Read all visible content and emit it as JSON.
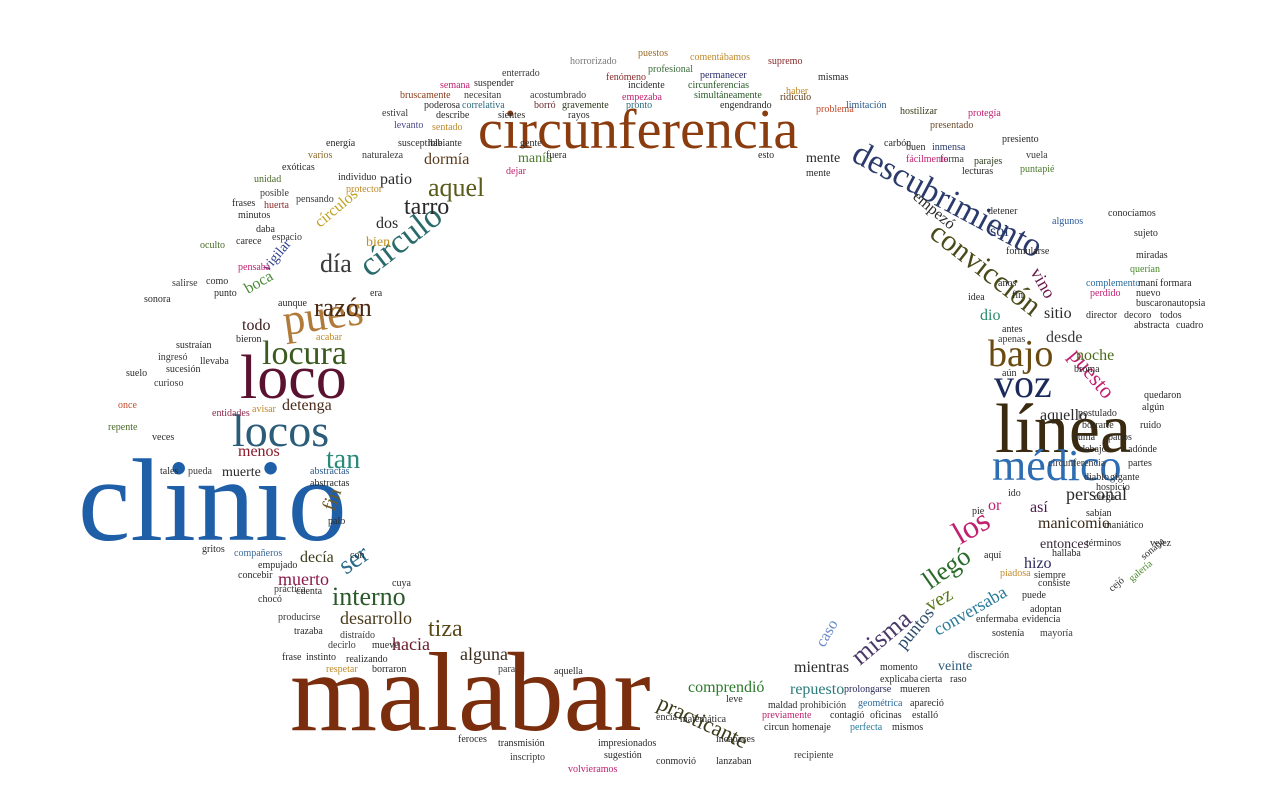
{
  "title": "",
  "words": [
    {
      "text": "clinio",
      "color": "#1f5fa8"
    },
    {
      "text": "malabar",
      "color": "#7a2e0e"
    },
    {
      "text": "circunferencia",
      "color": "#8a3c0e"
    },
    {
      "text": "línea",
      "color": "#3a2a10"
    },
    {
      "text": "loco",
      "color": "#5a1230"
    },
    {
      "text": "locos",
      "color": "#2b5c7a"
    },
    {
      "text": "médico",
      "color": "#2f6db3"
    },
    {
      "text": "pues",
      "color": "#b07a3a"
    },
    {
      "text": "voz",
      "color": "#1b2a5a"
    },
    {
      "text": "locura",
      "color": "#3a5a20"
    },
    {
      "text": "bajo",
      "color": "#6a4a10"
    },
    {
      "text": "descubrimiento",
      "color": "#2a3a6a"
    },
    {
      "text": "convicción",
      "color": "#4a4a1a"
    },
    {
      "text": "círculo",
      "color": "#2a6a6a"
    },
    {
      "text": "razón",
      "color": "#4a2a10"
    },
    {
      "text": "día",
      "color": "#3a3a3a"
    },
    {
      "text": "aquel",
      "color": "#5a5a1a"
    },
    {
      "text": "tarro",
      "color": "#2a2a2a"
    },
    {
      "text": "los",
      "color": "#c02070"
    },
    {
      "text": "llegó",
      "color": "#2a6a2a"
    },
    {
      "text": "misma",
      "color": "#4a3a6a"
    },
    {
      "text": "interno",
      "color": "#2a5a2a"
    },
    {
      "text": "ser",
      "color": "#2a6a8a"
    },
    {
      "text": "tiza",
      "color": "#5a4a1a"
    },
    {
      "text": "tan",
      "color": "#2a8a7a"
    },
    {
      "text": "fin",
      "color": "#6a5a2a"
    },
    {
      "text": "muerto",
      "color": "#8a1a4a"
    },
    {
      "text": "practicante",
      "color": "#3a3a1a"
    },
    {
      "text": "alguna",
      "color": "#3a2a1a"
    },
    {
      "text": "hacia",
      "color": "#6a1a2a"
    },
    {
      "text": "desarrollo",
      "color": "#4a3a1a"
    },
    {
      "text": "vez",
      "color": "#5a7a1a"
    },
    {
      "text": "puntos",
      "color": "#2a4a6a"
    },
    {
      "text": "conversaba",
      "color": "#2a7a9a"
    },
    {
      "text": "manicomio",
      "color": "#3a2a1a"
    },
    {
      "text": "personal",
      "color": "#2a2a2a"
    },
    {
      "text": "entonces",
      "color": "#3a2a3a"
    },
    {
      "text": "así",
      "color": "#4a1a4a"
    },
    {
      "text": "puesto",
      "color": "#c02070"
    },
    {
      "text": "noche",
      "color": "#4a6a1a"
    },
    {
      "text": "desde",
      "color": "#3a3a3a"
    },
    {
      "text": "aquello",
      "color": "#2a2a2a"
    },
    {
      "text": "sitio",
      "color": "#2a2a2a"
    },
    {
      "text": "vino",
      "color": "#6a1a4a"
    },
    {
      "text": "dio",
      "color": "#2a8a6a"
    },
    {
      "text": "sol",
      "color": "#2a3a6a"
    },
    {
      "text": "empezó",
      "color": "#2a2a2a"
    },
    {
      "text": "mente",
      "color": "#2a2a2a"
    },
    {
      "text": "manía",
      "color": "#4a7a2a"
    },
    {
      "text": "dormía",
      "color": "#5a3a1a"
    },
    {
      "text": "patio",
      "color": "#2a2a2a"
    },
    {
      "text": "dos",
      "color": "#2a2a2a"
    },
    {
      "text": "bien",
      "color": "#c09020"
    },
    {
      "text": "círculos",
      "color": "#c0a020"
    },
    {
      "text": "vigilar",
      "color": "#2a3a8a"
    },
    {
      "text": "boca",
      "color": "#4a8a3a"
    },
    {
      "text": "todo",
      "color": "#3a1a1a"
    },
    {
      "text": "detenga",
      "color": "#4a2a1a"
    },
    {
      "text": "menos",
      "color": "#8a1a2a"
    },
    {
      "text": "muerte",
      "color": "#2a2a2a"
    },
    {
      "text": "decía",
      "color": "#3a3a1a"
    },
    {
      "text": "mientras",
      "color": "#2a2a2a"
    },
    {
      "text": "repuesto",
      "color": "#2a7a7a"
    },
    {
      "text": "comprendió",
      "color": "#2a7a2a"
    },
    {
      "text": "caso",
      "color": "#6a8aca"
    },
    {
      "text": "veinte",
      "color": "#2a5a7a"
    },
    {
      "text": "hizo",
      "color": "#2a2a5a"
    },
    {
      "text": "or",
      "color": "#c02070"
    },
    {
      "text": "horrorizado",
      "color": "#7a7a7a"
    },
    {
      "text": "puestos",
      "color": "#9a6a2a"
    },
    {
      "text": "supremo",
      "color": "#8a2a2a"
    },
    {
      "text": "profesional",
      "color": "#3a6a3a"
    },
    {
      "text": "permanecer",
      "color": "#2a2a6a"
    },
    {
      "text": "simultáneamente",
      "color": "#2a5a2a"
    },
    {
      "text": "ridículo",
      "color": "#5a3a1a"
    },
    {
      "text": "problema",
      "color": "#c04a2a"
    },
    {
      "text": "limitación",
      "color": "#2a5a8a"
    },
    {
      "text": "presentado",
      "color": "#6a4a2a"
    },
    {
      "text": "protegía",
      "color": "#c02070"
    },
    {
      "text": "hostilizar",
      "color": "#3a3a1a"
    },
    {
      "text": "inmensa",
      "color": "#2a3a6a"
    },
    {
      "text": "forma",
      "color": "#3a3a3a"
    },
    {
      "text": "parajes",
      "color": "#2a3a1a"
    },
    {
      "text": "vuela",
      "color": "#3a3a3a"
    },
    {
      "text": "puntapié",
      "color": "#4a7a2a"
    },
    {
      "text": "suspender",
      "color": "#2a2a2a"
    },
    {
      "text": "enterrado",
      "color": "#3a3a3a"
    },
    {
      "text": "acostumbrado",
      "color": "#3a3a3a"
    },
    {
      "text": "incidente",
      "color": "#2a2a2a"
    },
    {
      "text": "pronto",
      "color": "#2a6a7a"
    },
    {
      "text": "circunferencias",
      "color": "#2a5a2a"
    },
    {
      "text": "semana",
      "color": "#c02070"
    },
    {
      "text": "bruscamente",
      "color": "#8a3a1a"
    },
    {
      "text": "necesitan",
      "color": "#3a3a3a"
    },
    {
      "text": "correlativa",
      "color": "#2a6a7a"
    },
    {
      "text": "poderosa",
      "color": "#2a2a2a"
    },
    {
      "text": "borró",
      "color": "#6a2a2a"
    },
    {
      "text": "gravemente",
      "color": "#2a3a1a"
    },
    {
      "text": "fenómeno",
      "color": "#8a2a2a"
    },
    {
      "text": "engendrando",
      "color": "#2a2a2a"
    },
    {
      "text": "estival",
      "color": "#3a3a3a"
    },
    {
      "text": "describe",
      "color": "#2a2a2a"
    },
    {
      "text": "levanto",
      "color": "#4a4a8a"
    },
    {
      "text": "sentado",
      "color": "#c08a2a"
    },
    {
      "text": "habiante",
      "color": "#2a2a2a"
    },
    {
      "text": "susceptible",
      "color": "#2a2a2a"
    },
    {
      "text": "naturaleza",
      "color": "#3a3a3a"
    },
    {
      "text": "energía",
      "color": "#2a2a2a"
    },
    {
      "text": "varios",
      "color": "#8a6a2a"
    },
    {
      "text": "exóticas",
      "color": "#2a2a2a"
    },
    {
      "text": "unidad",
      "color": "#4a6a2a"
    },
    {
      "text": "frases",
      "color": "#2a2a2a"
    },
    {
      "text": "posible",
      "color": "#3a3a3a"
    },
    {
      "text": "minutos",
      "color": "#2a2a2a"
    },
    {
      "text": "pensando",
      "color": "#3a3a3a"
    },
    {
      "text": "huerta",
      "color": "#8a2a2a"
    },
    {
      "text": "daba",
      "color": "#2a2a2a"
    },
    {
      "text": "espacio",
      "color": "#3a3a3a"
    },
    {
      "text": "carece",
      "color": "#2a2a2a"
    },
    {
      "text": "oculto",
      "color": "#4a6a2a"
    },
    {
      "text": "pensaba",
      "color": "#c02070"
    },
    {
      "text": "sonora",
      "color": "#2a2a2a"
    },
    {
      "text": "punto",
      "color": "#2a2a2a"
    },
    {
      "text": "salirse",
      "color": "#3a3a3a"
    },
    {
      "text": "como",
      "color": "#2a2a2a"
    },
    {
      "text": "ingresó",
      "color": "#3a3a3a"
    },
    {
      "text": "sucesión",
      "color": "#2a2a2a"
    },
    {
      "text": "curioso",
      "color": "#3a3a3a"
    },
    {
      "text": "suelo",
      "color": "#2a2a2a"
    },
    {
      "text": "once",
      "color": "#c04a2a"
    },
    {
      "text": "repente",
      "color": "#4a6a2a"
    },
    {
      "text": "entidades",
      "color": "#8a2a4a"
    },
    {
      "text": "tales",
      "color": "#2a2a2a"
    },
    {
      "text": "pueda",
      "color": "#3a3a3a"
    },
    {
      "text": "abstractas",
      "color": "#2a5a8a"
    },
    {
      "text": "gritos",
      "color": "#2a2a2a"
    },
    {
      "text": "compañeros",
      "color": "#3a6a9a"
    },
    {
      "text": "empujado",
      "color": "#2a2a2a"
    },
    {
      "text": "concebir",
      "color": "#2a2a2a"
    },
    {
      "text": "práctica",
      "color": "#3a3a3a"
    },
    {
      "text": "cuenta",
      "color": "#2a2a2a"
    },
    {
      "text": "chocó",
      "color": "#2a2a2a"
    },
    {
      "text": "producirse",
      "color": "#3a3a3a"
    },
    {
      "text": "trazaba",
      "color": "#2a2a2a"
    },
    {
      "text": "distraído",
      "color": "#3a3a3a"
    },
    {
      "text": "frase",
      "color": "#2a2a2a"
    },
    {
      "text": "instinto",
      "color": "#2a2a2a"
    },
    {
      "text": "realizando",
      "color": "#2a2a2a"
    },
    {
      "text": "decirlo",
      "color": "#3a3a3a"
    },
    {
      "text": "mueve",
      "color": "#2a2a2a"
    },
    {
      "text": "respetar",
      "color": "#c08a2a"
    },
    {
      "text": "borraron",
      "color": "#2a2a2a"
    },
    {
      "text": "aquella",
      "color": "#2a2a2a"
    },
    {
      "text": "para",
      "color": "#3a3a3a"
    },
    {
      "text": "transmisión",
      "color": "#2a2a2a"
    },
    {
      "text": "impresionados",
      "color": "#2a2a2a"
    },
    {
      "text": "feroces",
      "color": "#2a2a2a"
    },
    {
      "text": "inscripto",
      "color": "#3a3a3a"
    },
    {
      "text": "sugestión",
      "color": "#2a2a2a"
    },
    {
      "text": "volvieramos",
      "color": "#c02070"
    },
    {
      "text": "conmovió",
      "color": "#2a2a2a"
    },
    {
      "text": "lanzaban",
      "color": "#2a2a2a"
    },
    {
      "text": "recipiente",
      "color": "#3a3a3a"
    },
    {
      "text": "matemática",
      "color": "#2a2a2a"
    },
    {
      "text": "incapaces",
      "color": "#2a2a2a"
    },
    {
      "text": "circun",
      "color": "#2a2a2a"
    },
    {
      "text": "homenaje",
      "color": "#2a2a2a"
    },
    {
      "text": "perfecta",
      "color": "#2a7a9a"
    },
    {
      "text": "mismos",
      "color": "#2a2a2a"
    },
    {
      "text": "maldad",
      "color": "#2a2a2a"
    },
    {
      "text": "prohibición",
      "color": "#3a3a3a"
    },
    {
      "text": "contagió",
      "color": "#2a2a2a"
    },
    {
      "text": "oficinas",
      "color": "#2a2a2a"
    },
    {
      "text": "estalló",
      "color": "#2a2a2a"
    },
    {
      "text": "previamente",
      "color": "#c02070"
    },
    {
      "text": "geométrica",
      "color": "#2a6a9a"
    },
    {
      "text": "apareció",
      "color": "#2a2a2a"
    },
    {
      "text": "prolongarse",
      "color": "#2a2a5a"
    },
    {
      "text": "mueren",
      "color": "#2a2a2a"
    },
    {
      "text": "explicaba",
      "color": "#2a2a2a"
    },
    {
      "text": "cierta",
      "color": "#2a2a2a"
    },
    {
      "text": "raso",
      "color": "#2a2a2a"
    },
    {
      "text": "momento",
      "color": "#2a2a2a"
    },
    {
      "text": "discreción",
      "color": "#3a3a3a"
    },
    {
      "text": "enfermaba",
      "color": "#2a2a2a"
    },
    {
      "text": "evidencia",
      "color": "#2a2a2a"
    },
    {
      "text": "sostenía",
      "color": "#2a2a2a"
    },
    {
      "text": "mayoría",
      "color": "#3a3a3a"
    },
    {
      "text": "adoptan",
      "color": "#2a2a2a"
    },
    {
      "text": "puede",
      "color": "#2a2a2a"
    },
    {
      "text": "siempre",
      "color": "#2a2a2a"
    },
    {
      "text": "hallaba",
      "color": "#2a2a2a"
    },
    {
      "text": "términos",
      "color": "#2a2a2a"
    },
    {
      "text": "maniático",
      "color": "#2a2a2a"
    },
    {
      "text": "sabían",
      "color": "#2a2a2a"
    },
    {
      "text": "hospicio",
      "color": "#2a2a2a"
    },
    {
      "text": "partes",
      "color": "#2a2a2a"
    },
    {
      "text": "circunferencia",
      "color": "#3a3a3a"
    },
    {
      "text": "debajo",
      "color": "#2a2a2a"
    },
    {
      "text": "adónde",
      "color": "#2a2a2a"
    },
    {
      "text": "suma",
      "color": "#2a2a2a"
    },
    {
      "text": "patios",
      "color": "#2a2a2a"
    },
    {
      "text": "borrarle",
      "color": "#2a2a2a"
    },
    {
      "text": "ruido",
      "color": "#2a2a2a"
    },
    {
      "text": "postulado",
      "color": "#2a2a2a"
    },
    {
      "text": "quedaron",
      "color": "#2a2a2a"
    },
    {
      "text": "broma",
      "color": "#2a2a2a"
    },
    {
      "text": "abstracta",
      "color": "#2a2a2a"
    },
    {
      "text": "cuadro",
      "color": "#2a2a2a"
    },
    {
      "text": "director",
      "color": "#2a2a2a"
    },
    {
      "text": "decoro",
      "color": "#2a2a2a"
    },
    {
      "text": "todos",
      "color": "#2a2a2a"
    },
    {
      "text": "perdido",
      "color": "#c02070"
    },
    {
      "text": "nuevo",
      "color": "#2a2a2a"
    },
    {
      "text": "complemento",
      "color": "#2a6a9a"
    },
    {
      "text": "maní",
      "color": "#2a2a2a"
    },
    {
      "text": "formara",
      "color": "#2a2a2a"
    },
    {
      "text": "querían",
      "color": "#4a8a2a"
    },
    {
      "text": "miradas",
      "color": "#2a2a2a"
    },
    {
      "text": "sujeto",
      "color": "#2a2a2a"
    },
    {
      "text": "conocíamos",
      "color": "#2a2a2a"
    },
    {
      "text": "algunos",
      "color": "#2a5a9a"
    },
    {
      "text": "detener",
      "color": "#2a2a2a"
    },
    {
      "text": "lecturas",
      "color": "#2a2a2a"
    },
    {
      "text": "carbón",
      "color": "#2a2a2a"
    },
    {
      "text": "fácilmente",
      "color": "#c02070"
    },
    {
      "text": "buen",
      "color": "#2a2a2a"
    },
    {
      "text": "idea",
      "color": "#2a2a2a"
    },
    {
      "text": "antes",
      "color": "#2a2a2a"
    },
    {
      "text": "apenas",
      "color": "#3a3a3a"
    },
    {
      "text": "aún",
      "color": "#2a2a2a"
    },
    {
      "text": "buscaron",
      "color": "#2a2a2a"
    },
    {
      "text": "autopsia",
      "color": "#2a2a2a"
    },
    {
      "text": "formularse",
      "color": "#2a2a2a"
    },
    {
      "text": "años",
      "color": "#2a2a2a"
    },
    {
      "text": "fin",
      "color": "#2a2a2a"
    },
    {
      "text": "esto",
      "color": "#2a2a2a"
    },
    {
      "text": "dejar",
      "color": "#c02070"
    },
    {
      "text": "fuera",
      "color": "#2a2a2a"
    },
    {
      "text": "gente",
      "color": "#2a2a2a"
    },
    {
      "text": "leve",
      "color": "#2a2a2a"
    },
    {
      "text": "veces",
      "color": "#2a2a2a"
    },
    {
      "text": "avisar",
      "color": "#c08a2a"
    },
    {
      "text": "abstractas",
      "color": "#2a2a2a"
    },
    {
      "text": "sientes",
      "color": "#2a2a2a"
    },
    {
      "text": "rayos",
      "color": "#2a2a2a"
    },
    {
      "text": "protector",
      "color": "#c08a2a"
    },
    {
      "text": "individuo",
      "color": "#2a2a2a"
    },
    {
      "text": "encía",
      "color": "#2a2a2a"
    },
    {
      "text": "haber",
      "color": "#c08a2a"
    },
    {
      "text": "mismas",
      "color": "#2a2a2a"
    },
    {
      "text": "comentábamos",
      "color": "#c08a2a"
    },
    {
      "text": "empezaba",
      "color": "#c02070"
    },
    {
      "text": "ciega",
      "color": "#2a2a2a"
    },
    {
      "text": "vejez",
      "color": "#2a2a2a"
    },
    {
      "text": "cuya",
      "color": "#2a2a2a"
    },
    {
      "text": "aquí",
      "color": "#2a2a2a"
    },
    {
      "text": "pie",
      "color": "#2a2a2a"
    },
    {
      "text": "ido",
      "color": "#2a2a2a"
    },
    {
      "text": "diablo",
      "color": "#2a2a2a"
    },
    {
      "text": "gigante",
      "color": "#2a2a2a"
    },
    {
      "text": "acabar",
      "color": "#c08a2a"
    },
    {
      "text": "era",
      "color": "#2a2a2a"
    },
    {
      "text": "bieron",
      "color": "#2a2a2a"
    },
    {
      "text": "sustraían",
      "color": "#2a2a2a"
    },
    {
      "text": "aunque",
      "color": "#2a2a2a"
    },
    {
      "text": "llevaba",
      "color": "#2a2a2a"
    },
    {
      "text": "palo",
      "color": "#2a2a2a"
    },
    {
      "text": "con",
      "color": "#2a2a2a"
    },
    {
      "text": "galería",
      "color": "#4a8a2a"
    },
    {
      "text": "sonaba",
      "color": "#2a2a2a"
    },
    {
      "text": "piadosa",
      "color": "#c08a2a"
    },
    {
      "text": "cejó",
      "color": "#2a2a2a"
    },
    {
      "text": "consiste",
      "color": "#2a2a2a"
    },
    {
      "text": "algún",
      "color": "#2a2a2a"
    },
    {
      "text": "mente",
      "color": "#2a2a2a"
    },
    {
      "text": "presiento",
      "color": "#2a2a2a"
    }
  ]
}
